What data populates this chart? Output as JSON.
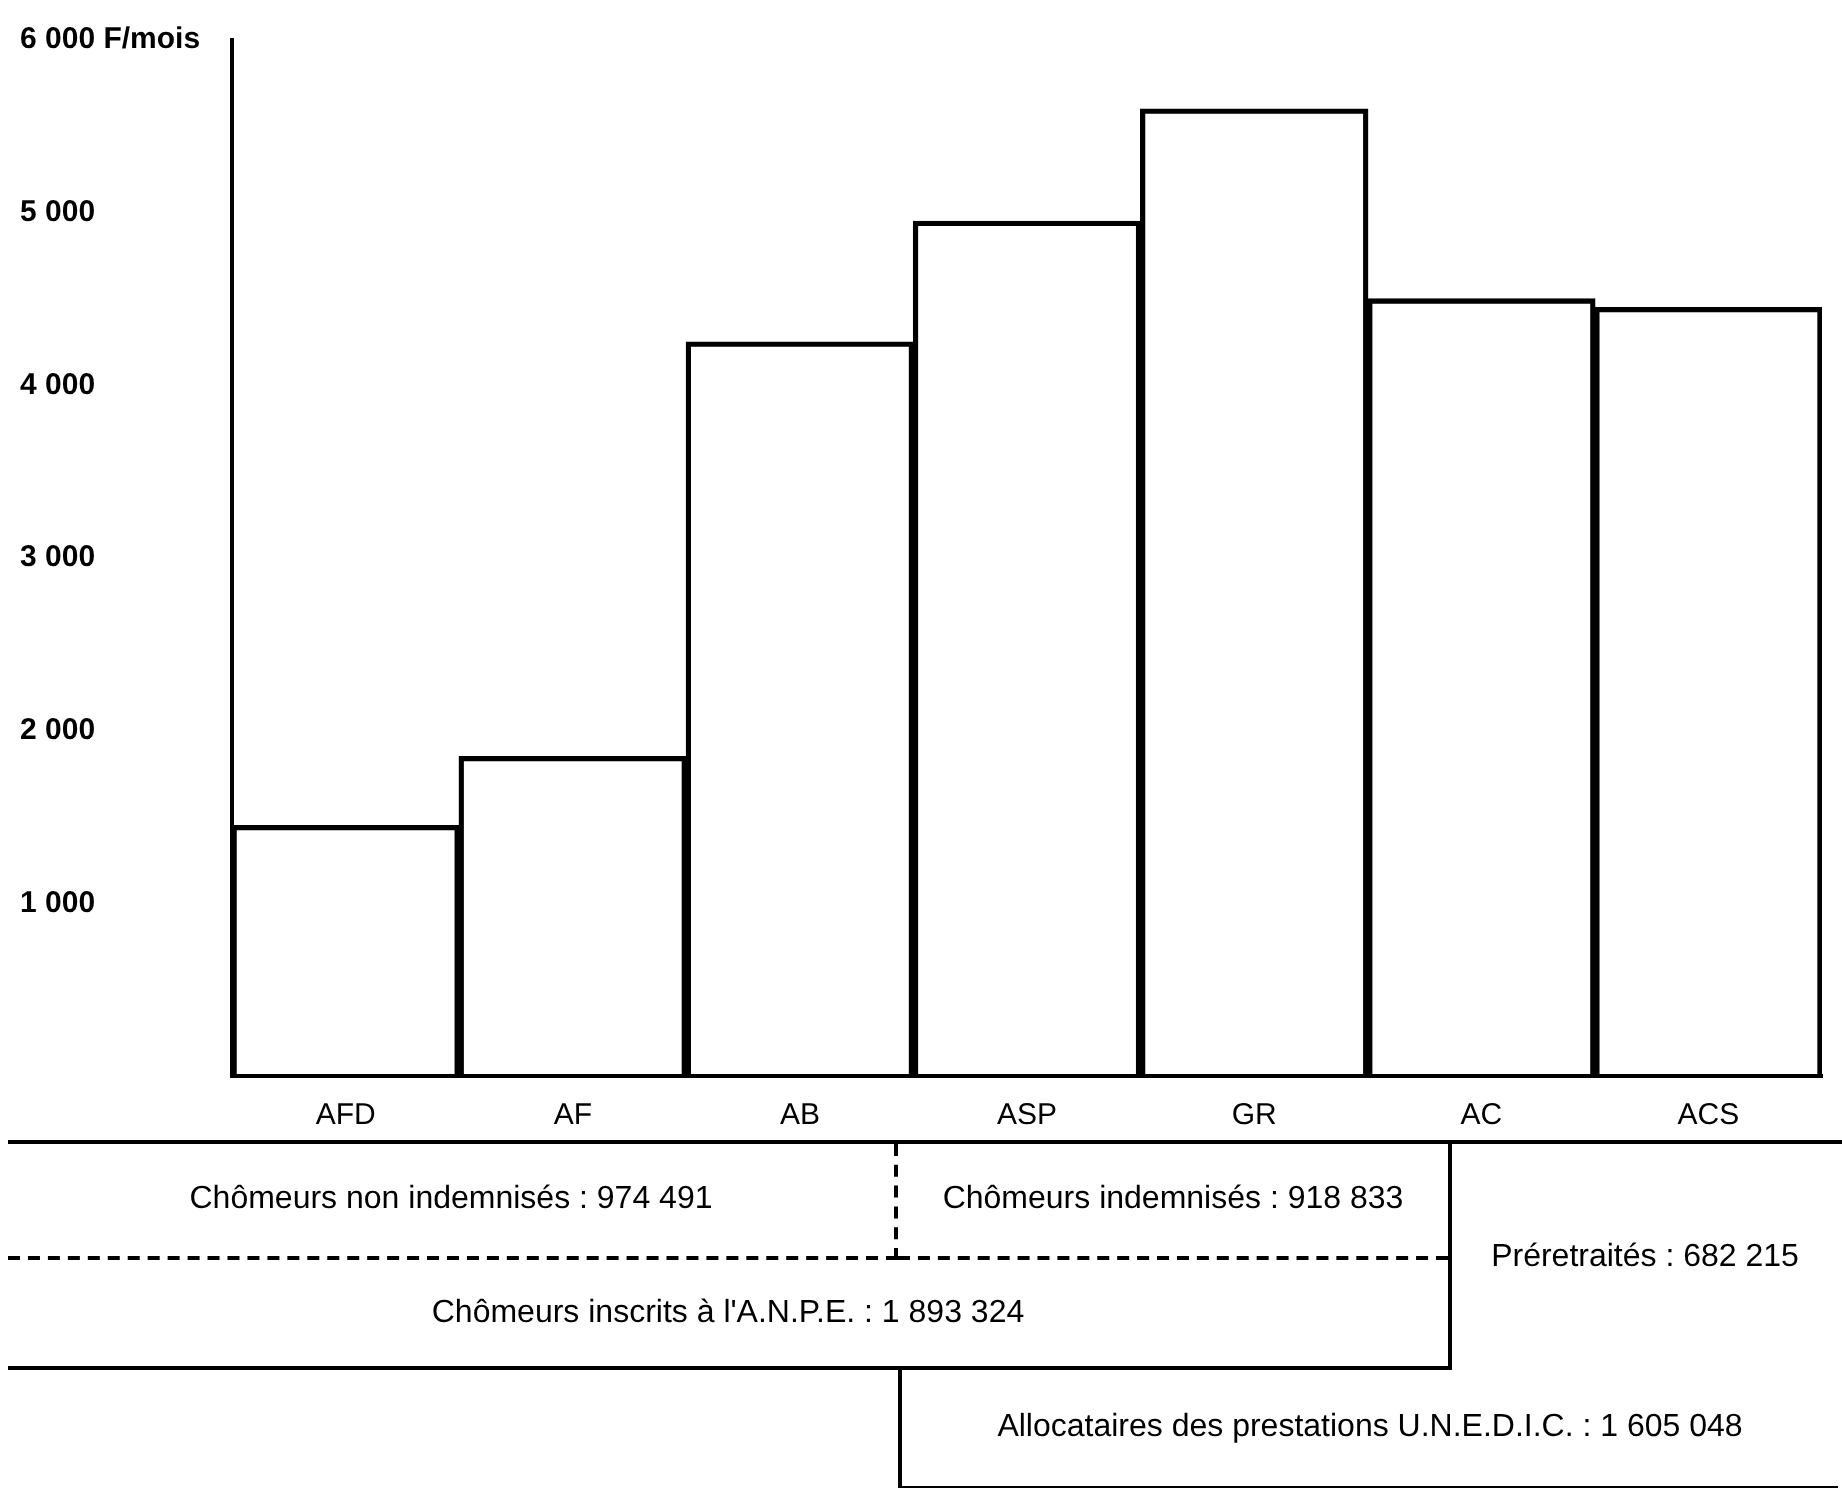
{
  "chart_data": {
    "type": "bar",
    "categories": [
      "AFD",
      "AF",
      "AB",
      "ASP",
      "GR",
      "AC",
      "ACS"
    ],
    "values": [
      1450,
      1850,
      4250,
      4950,
      5600,
      4500,
      4450
    ],
    "color": "#000000",
    "ylim": [
      0,
      6000
    ],
    "yticks": [
      {
        "value": 0,
        "label": null
      },
      {
        "value": 1000,
        "label": "1 000"
      },
      {
        "value": 2000,
        "label": "2 000"
      },
      {
        "value": 3000,
        "label": "3 000"
      },
      {
        "value": 4000,
        "label": "4 000"
      },
      {
        "value": 5000,
        "label": "5 000"
      },
      {
        "value": 6000,
        "label": "6 000 F/mois"
      }
    ],
    "grid": false,
    "legend": false,
    "annotations": [
      "Chômeurs non indemnisés : 974 491",
      "Chômeurs indemnisés : 918 833",
      "Préretraités : 682 215",
      "Chômeurs inscrits à l'A.N.P.E. : 1 893 324",
      "Allocataires des prestations U.N.E.D.I.C. : 1 605 048"
    ]
  }
}
